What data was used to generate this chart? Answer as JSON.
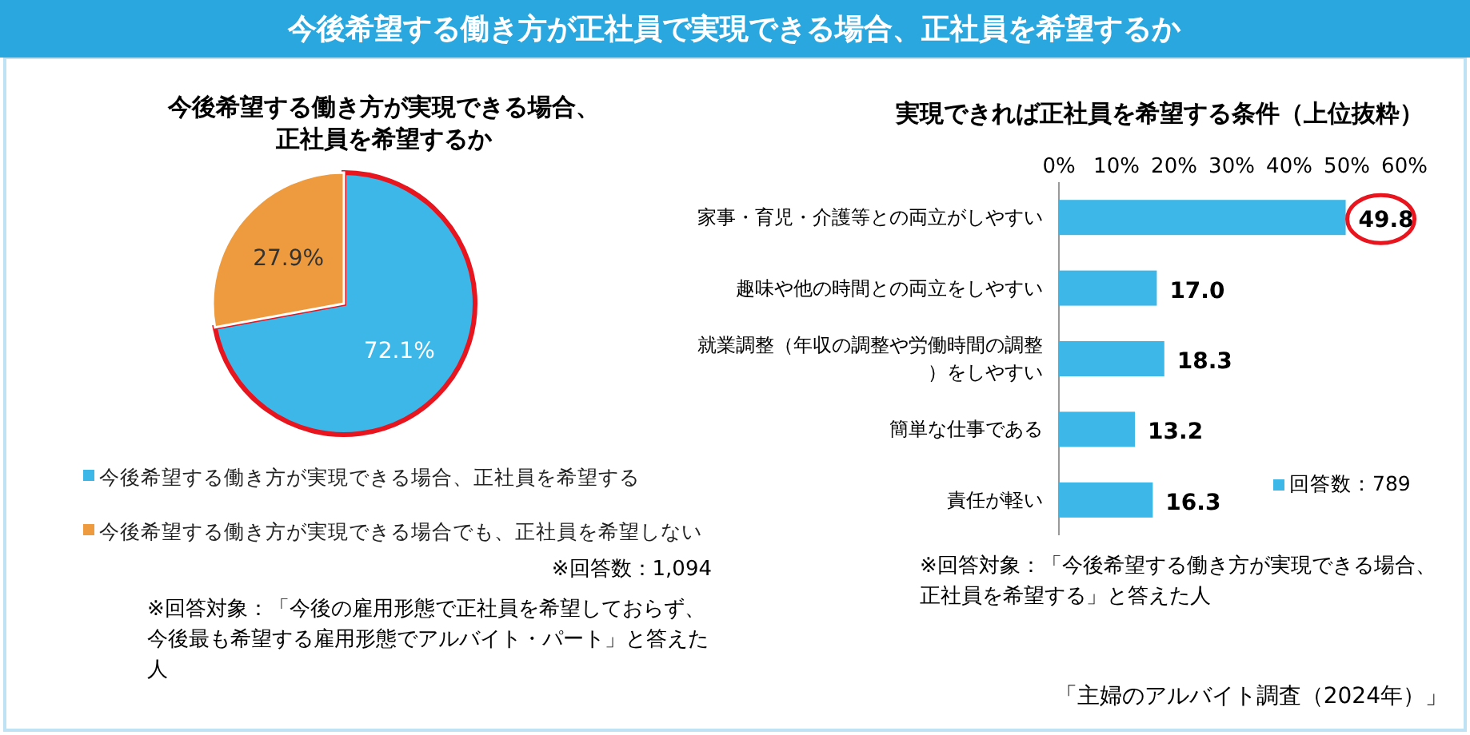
{
  "chart_data": [
    {
      "type": "pie",
      "title": "今後希望する働き方が正社員で実現できる場合、正社員を希望するか",
      "subtitle": "今後希望する働き方が実現できる場合、正社員を希望するか",
      "categories": [
        "今後希望する働き方が実現できる場合、正社員を希望する",
        "今後希望する働き方が実現できる場合でも、正社員を希望しない"
      ],
      "values": [
        72.1,
        27.9
      ],
      "colors": [
        "#3db6e8",
        "#ee9b3f"
      ],
      "value_labels": [
        "72.1%",
        "27.9%"
      ],
      "legend": "bottom",
      "annotations": [
        "※回答数：1,094",
        "※回答対象：「今後の雇用形態で正社員を希望しておらず、今後最も希望する雇用形態でアルバイト・パート」と答えた人"
      ]
    },
    {
      "type": "bar",
      "orientation": "horizontal",
      "title": "実現できれば正社員を希望する条件（上位抜粋）",
      "categories": [
        "家事・育児・介護等との両立がしやすい",
        "趣味や他の時間との両立をしやすい",
        "就業調整（年収の調整や労働時間の調整）をしやすい",
        "簡単な仕事である",
        "責任が軽い"
      ],
      "series": [
        {
          "name": "回答数：789",
          "color": "#3db6e8",
          "values": [
            49.8,
            17.0,
            18.3,
            13.2,
            16.3
          ]
        }
      ],
      "value_labels": [
        "49.8",
        "17.0",
        "18.3",
        "13.2",
        "16.3"
      ],
      "xlim": [
        0,
        60
      ],
      "xticks": [
        {
          "value": 0,
          "label": "0%"
        },
        {
          "value": 10,
          "label": "10%"
        },
        {
          "value": 20,
          "label": "20%"
        },
        {
          "value": 30,
          "label": "30%"
        },
        {
          "value": 40,
          "label": "40%"
        },
        {
          "value": 50,
          "label": "50%"
        },
        {
          "value": 60,
          "label": "60%"
        }
      ],
      "grid": false,
      "legend": "bottom right",
      "annotations": [
        "※回答対象：「今後希望する働き方が実現できる場合、正社員を希望する」と答えた人",
        "「主婦のアルバイト調査（2024年）」"
      ]
    }
  ]
}
